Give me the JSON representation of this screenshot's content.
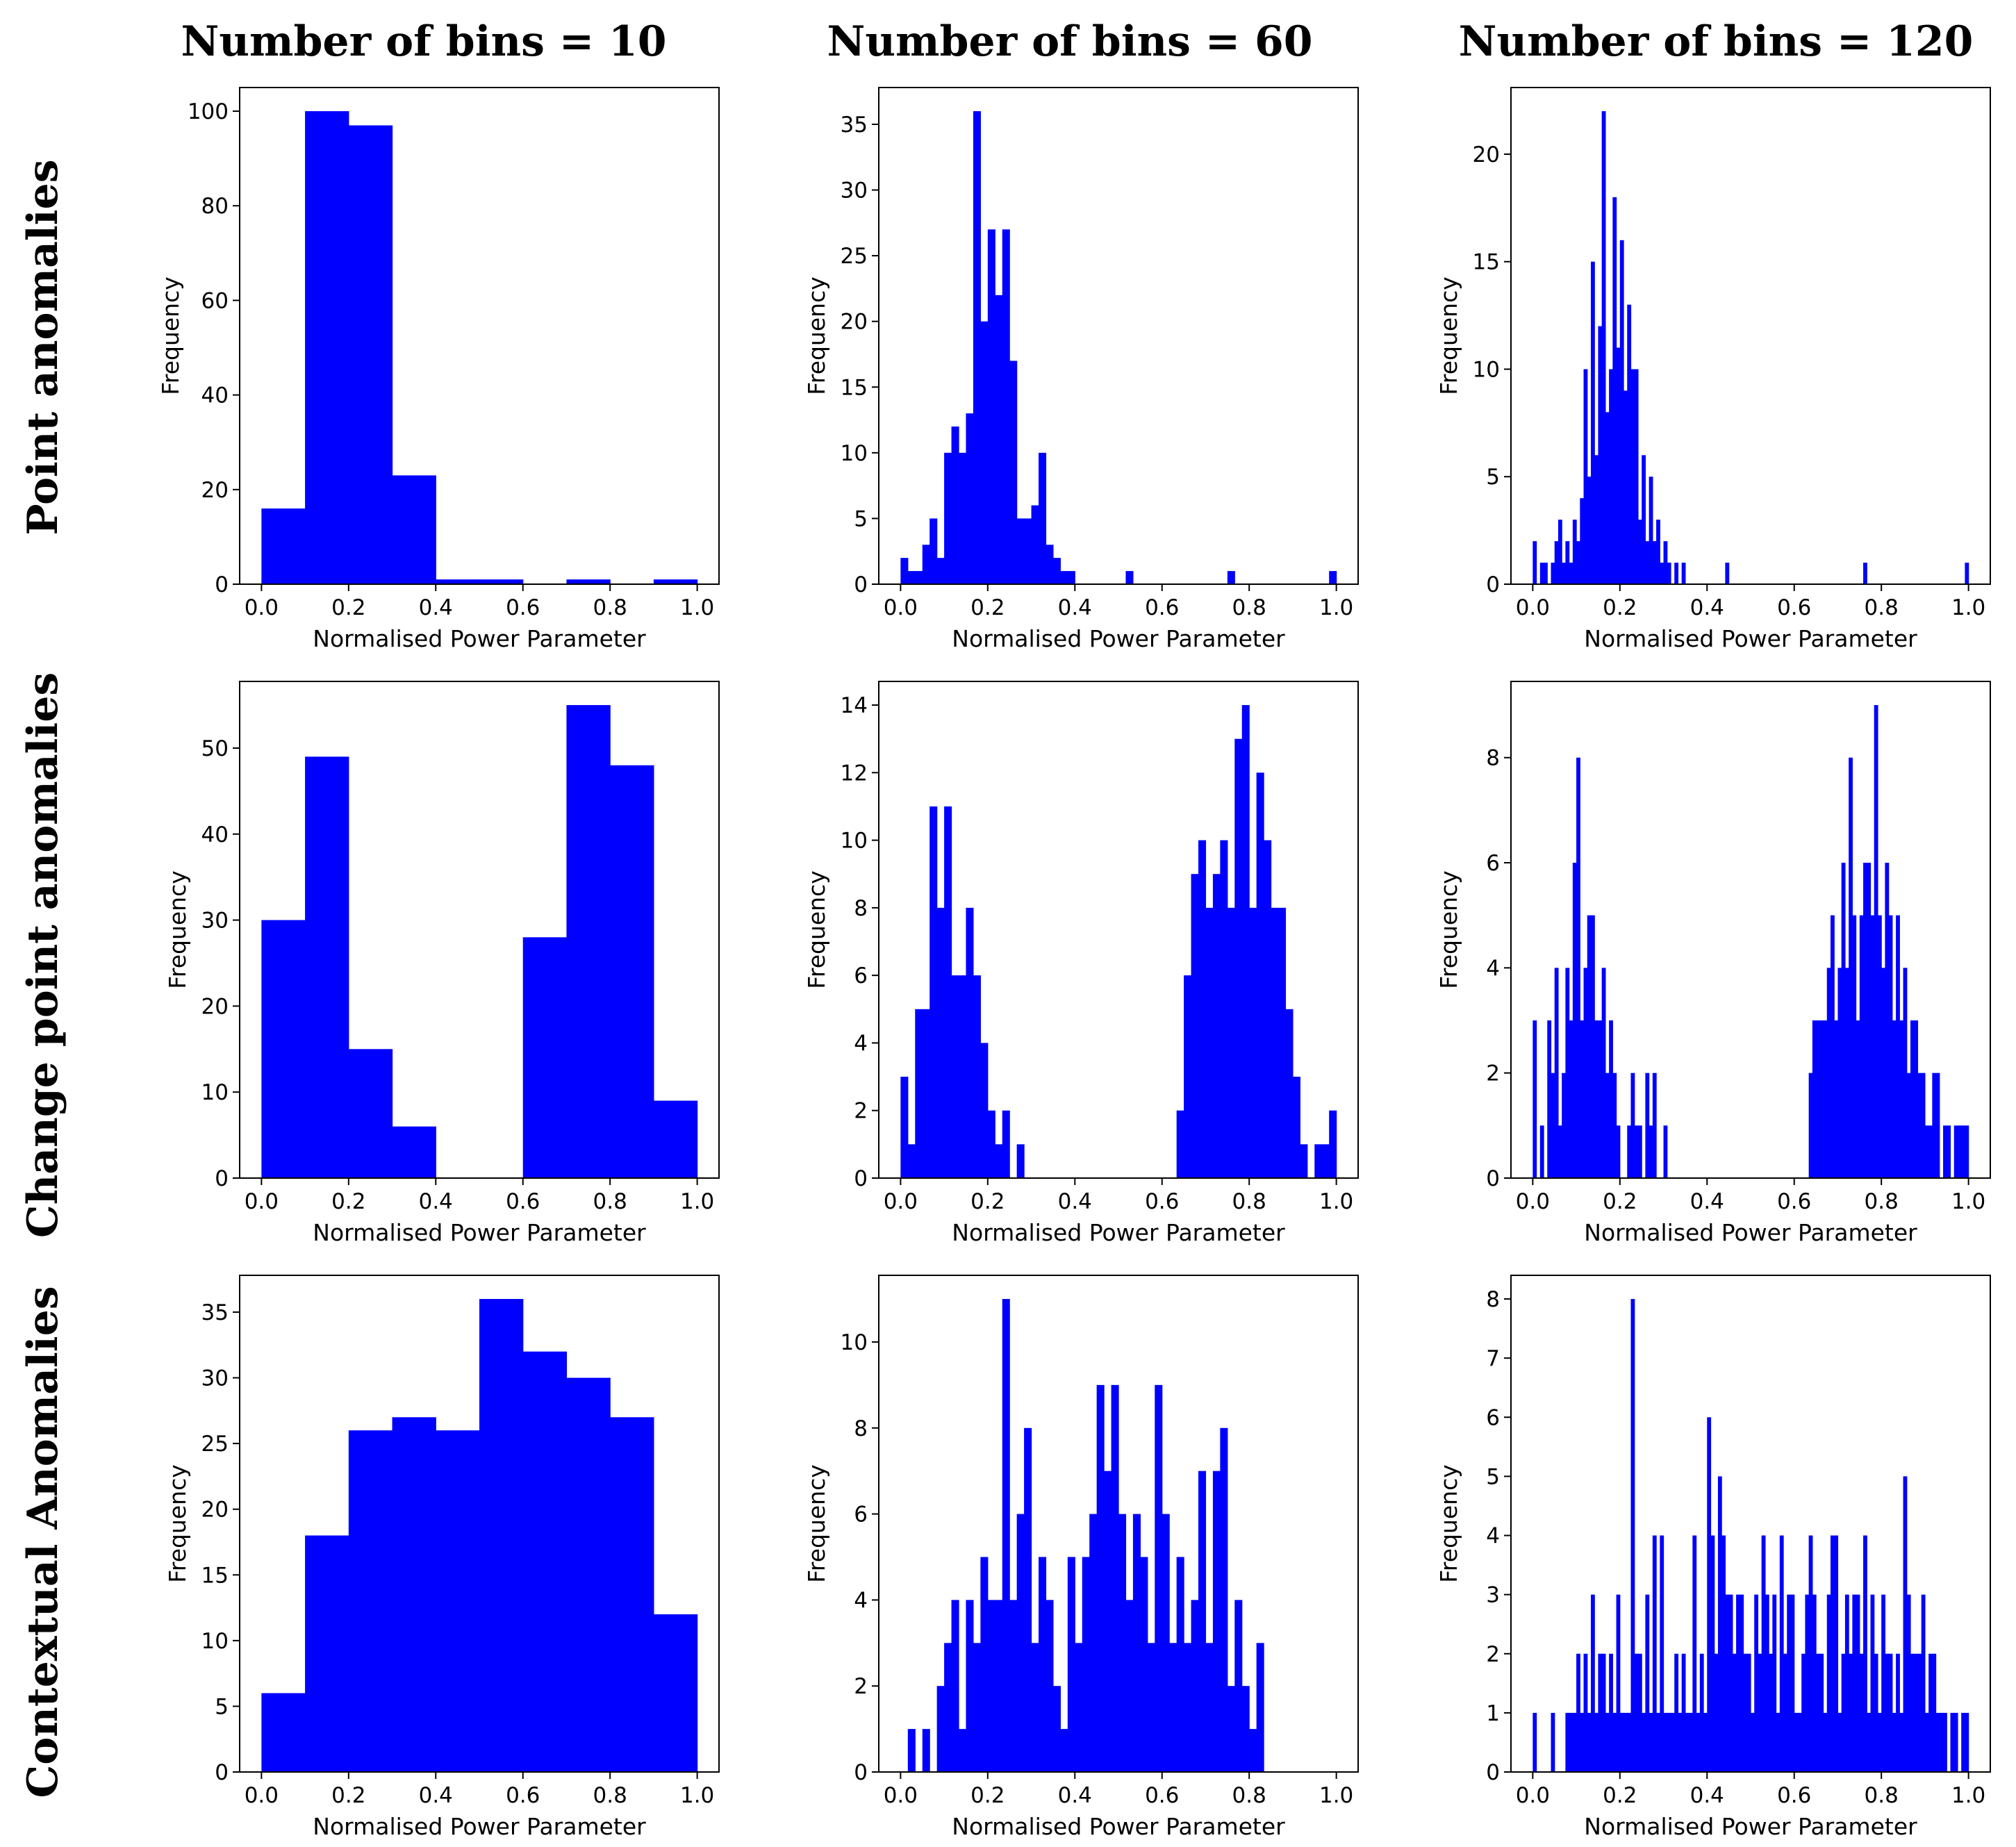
{
  "figure": {
    "column_titles": [
      "Number of bins = 10",
      "Number of bins = 60",
      "Number of bins = 120"
    ],
    "row_titles": [
      "Point anomalies",
      "Change point anomalies",
      "Contextual Anomalies"
    ],
    "bar_color": "#0000ff"
  },
  "chart_data": [
    {
      "type": "bar",
      "title": "",
      "bins": 10,
      "xlabel": "Normalised Power Parameter",
      "ylabel": "Frequency",
      "xlim": [
        -0.05,
        1.05
      ],
      "ylim": [
        0,
        105
      ],
      "xticks": [
        0.0,
        0.2,
        0.4,
        0.6,
        0.8,
        1.0
      ],
      "xtick_labels": [
        "0.0",
        "0.2",
        "0.4",
        "0.6",
        "0.8",
        "1.0"
      ],
      "yticks": [
        0,
        20,
        40,
        60,
        80,
        100
      ],
      "ytick_labels": [
        "0",
        "20",
        "40",
        "60",
        "80",
        "100"
      ],
      "values": [
        16,
        100,
        97,
        23,
        1,
        1,
        0,
        1,
        0,
        1
      ]
    },
    {
      "type": "bar",
      "title": "",
      "bins": 60,
      "xlabel": "Normalised Power Parameter",
      "ylabel": "Frequency",
      "xlim": [
        -0.05,
        1.05
      ],
      "ylim": [
        0,
        37.8
      ],
      "xticks": [
        0.0,
        0.2,
        0.4,
        0.6,
        0.8,
        1.0
      ],
      "xtick_labels": [
        "0.0",
        "0.2",
        "0.4",
        "0.6",
        "0.8",
        "1.0"
      ],
      "yticks": [
        0,
        5,
        10,
        15,
        20,
        25,
        30,
        35
      ],
      "ytick_labels": [
        "0",
        "5",
        "10",
        "15",
        "20",
        "25",
        "30",
        "35"
      ],
      "values": [
        2,
        1,
        1,
        3,
        5,
        2,
        10,
        12,
        10,
        13,
        36,
        20,
        27,
        22,
        27,
        17,
        5,
        5,
        6,
        10,
        3,
        2,
        1,
        1,
        0,
        0,
        0,
        0,
        0,
        0,
        0,
        1,
        0,
        0,
        0,
        0,
        0,
        0,
        0,
        0,
        0,
        0,
        0,
        0,
        0,
        1,
        0,
        0,
        0,
        0,
        0,
        0,
        0,
        0,
        0,
        0,
        0,
        0,
        0,
        1
      ]
    },
    {
      "type": "bar",
      "title": "",
      "bins": 120,
      "xlabel": "Normalised Power Parameter",
      "ylabel": "Frequency",
      "xlim": [
        -0.05,
        1.05
      ],
      "ylim": [
        0,
        23.1
      ],
      "xticks": [
        0.0,
        0.2,
        0.4,
        0.6,
        0.8,
        1.0
      ],
      "xtick_labels": [
        "0.0",
        "0.2",
        "0.4",
        "0.6",
        "0.8",
        "1.0"
      ],
      "yticks": [
        0,
        5,
        10,
        15,
        20
      ],
      "ytick_labels": [
        "0",
        "5",
        "10",
        "15",
        "20"
      ],
      "values": [
        2,
        0,
        1,
        1,
        0,
        1,
        2,
        3,
        1,
        2,
        1,
        3,
        2,
        4,
        10,
        5,
        15,
        6,
        12,
        22,
        8,
        10,
        18,
        11,
        16,
        9,
        13,
        10,
        10,
        3,
        6,
        2,
        5,
        2,
        3,
        1,
        2,
        1,
        0,
        1,
        0,
        1,
        0,
        0,
        0,
        0,
        0,
        0,
        0,
        0,
        0,
        0,
        0,
        1,
        0,
        0,
        0,
        0,
        0,
        0,
        0,
        0,
        0,
        0,
        0,
        0,
        0,
        0,
        0,
        0,
        0,
        0,
        0,
        0,
        0,
        0,
        0,
        0,
        0,
        0,
        0,
        0,
        0,
        0,
        0,
        0,
        0,
        0,
        0,
        0,
        0,
        1,
        0,
        0,
        0,
        0,
        0,
        0,
        0,
        0,
        0,
        0,
        0,
        0,
        0,
        0,
        0,
        0,
        0,
        0,
        0,
        0,
        0,
        0,
        0,
        0,
        0,
        0,
        0,
        1
      ]
    },
    {
      "type": "bar",
      "title": "",
      "bins": 10,
      "xlabel": "Normalised Power Parameter",
      "ylabel": "Frequency",
      "xlim": [
        -0.05,
        1.05
      ],
      "ylim": [
        0,
        57.75
      ],
      "xticks": [
        0.0,
        0.2,
        0.4,
        0.6,
        0.8,
        1.0
      ],
      "xtick_labels": [
        "0.0",
        "0.2",
        "0.4",
        "0.6",
        "0.8",
        "1.0"
      ],
      "yticks": [
        0,
        10,
        20,
        30,
        40,
        50
      ],
      "ytick_labels": [
        "0",
        "10",
        "20",
        "30",
        "40",
        "50"
      ],
      "values": [
        30,
        49,
        15,
        6,
        0,
        0,
        28,
        55,
        48,
        9
      ]
    },
    {
      "type": "bar",
      "title": "",
      "bins": 60,
      "xlabel": "Normalised Power Parameter",
      "ylabel": "Frequency",
      "xlim": [
        -0.05,
        1.05
      ],
      "ylim": [
        0,
        14.7
      ],
      "xticks": [
        0.0,
        0.2,
        0.4,
        0.6,
        0.8,
        1.0
      ],
      "xtick_labels": [
        "0.0",
        "0.2",
        "0.4",
        "0.6",
        "0.8",
        "1.0"
      ],
      "yticks": [
        0,
        2,
        4,
        6,
        8,
        10,
        12,
        14
      ],
      "ytick_labels": [
        "0",
        "2",
        "4",
        "6",
        "8",
        "10",
        "12",
        "14"
      ],
      "values": [
        3,
        1,
        5,
        5,
        11,
        8,
        11,
        6,
        6,
        8,
        6,
        4,
        2,
        1,
        2,
        0,
        1,
        0,
        0,
        0,
        0,
        0,
        0,
        0,
        0,
        0,
        0,
        0,
        0,
        0,
        0,
        0,
        0,
        0,
        0,
        0,
        0,
        0,
        2,
        6,
        9,
        10,
        8,
        9,
        10,
        8,
        13,
        14,
        8,
        12,
        10,
        8,
        8,
        5,
        3,
        1,
        0,
        1,
        1,
        2
      ]
    },
    {
      "type": "bar",
      "title": "",
      "bins": 120,
      "xlabel": "Normalised Power Parameter",
      "ylabel": "Frequency",
      "xlim": [
        -0.05,
        1.05
      ],
      "ylim": [
        0,
        9.45
      ],
      "xticks": [
        0.0,
        0.2,
        0.4,
        0.6,
        0.8,
        1.0
      ],
      "xtick_labels": [
        "0.0",
        "0.2",
        "0.4",
        "0.6",
        "0.8",
        "1.0"
      ],
      "yticks": [
        0,
        2,
        4,
        6,
        8
      ],
      "ytick_labels": [
        "0",
        "2",
        "4",
        "6",
        "8"
      ],
      "values": [
        3,
        0,
        1,
        0,
        3,
        2,
        4,
        1,
        2,
        4,
        3,
        6,
        8,
        3,
        4,
        5,
        5,
        3,
        3,
        4,
        2,
        3,
        2,
        1,
        0,
        0,
        1,
        2,
        1,
        1,
        0,
        2,
        1,
        2,
        0,
        0,
        1,
        0,
        0,
        0,
        0,
        0,
        0,
        0,
        0,
        0,
        0,
        0,
        0,
        0,
        0,
        0,
        0,
        0,
        0,
        0,
        0,
        0,
        0,
        0,
        0,
        0,
        0,
        0,
        0,
        0,
        0,
        0,
        0,
        0,
        0,
        0,
        0,
        0,
        0,
        0,
        2,
        3,
        3,
        3,
        3,
        4,
        5,
        3,
        4,
        6,
        4,
        8,
        5,
        3,
        5,
        6,
        6,
        5,
        9,
        5,
        4,
        6,
        5,
        3,
        5,
        3,
        4,
        2,
        3,
        3,
        2,
        2,
        1,
        1,
        2,
        2,
        0,
        1,
        1,
        0,
        1,
        1,
        1,
        1
      ]
    },
    {
      "type": "bar",
      "title": "",
      "bins": 10,
      "xlabel": "Normalised Power Parameter",
      "ylabel": "Frequency",
      "xlim": [
        -0.05,
        1.05
      ],
      "ylim": [
        0,
        37.8
      ],
      "xticks": [
        0.0,
        0.2,
        0.4,
        0.6,
        0.8,
        1.0
      ],
      "xtick_labels": [
        "0.0",
        "0.2",
        "0.4",
        "0.6",
        "0.8",
        "1.0"
      ],
      "yticks": [
        0,
        5,
        10,
        15,
        20,
        25,
        30,
        35
      ],
      "ytick_labels": [
        "0",
        "5",
        "10",
        "15",
        "20",
        "25",
        "30",
        "35"
      ],
      "values": [
        6,
        18,
        26,
        27,
        26,
        36,
        32,
        30,
        27,
        12
      ]
    },
    {
      "type": "bar",
      "title": "",
      "bins": 60,
      "xlabel": "Normalised Power Parameter",
      "ylabel": "Frequency",
      "xlim": [
        -0.05,
        1.05
      ],
      "ylim": [
        0,
        11.55
      ],
      "xticks": [
        0.0,
        0.2,
        0.4,
        0.6,
        0.8,
        1.0
      ],
      "xtick_labels": [
        "0.0",
        "0.2",
        "0.4",
        "0.6",
        "0.8",
        "1.0"
      ],
      "yticks": [
        0,
        2,
        4,
        6,
        8,
        10
      ],
      "ytick_labels": [
        "0",
        "2",
        "4",
        "6",
        "8",
        "10"
      ],
      "values": [
        0,
        1,
        0,
        1,
        0,
        2,
        3,
        4,
        1,
        4,
        3,
        5,
        4,
        4,
        11,
        4,
        6,
        8,
        3,
        5,
        4,
        2,
        1,
        5,
        3,
        5,
        6,
        9,
        7,
        9,
        6,
        4,
        6,
        5,
        3,
        9,
        6,
        3,
        5,
        3,
        4,
        7,
        3,
        7,
        8,
        2,
        4,
        2,
        1,
        3,
        0,
        0,
        0,
        0,
        0,
        0,
        0,
        0,
        0,
        0
      ]
    },
    {
      "type": "bar",
      "title": "",
      "bins": 120,
      "xlabel": "Normalised Power Parameter",
      "ylabel": "Frequency",
      "xlim": [
        -0.05,
        1.05
      ],
      "ylim": [
        0,
        8.4
      ],
      "xticks": [
        0.0,
        0.2,
        0.4,
        0.6,
        0.8,
        1.0
      ],
      "xtick_labels": [
        "0.0",
        "0.2",
        "0.4",
        "0.6",
        "0.8",
        "1.0"
      ],
      "yticks": [
        0,
        1,
        2,
        3,
        4,
        5,
        6,
        7,
        8
      ],
      "ytick_labels": [
        "0",
        "1",
        "2",
        "3",
        "4",
        "5",
        "6",
        "7",
        "8"
      ],
      "values": [
        1,
        0,
        0,
        0,
        0,
        1,
        0,
        0,
        0,
        1,
        1,
        1,
        2,
        1,
        2,
        1,
        3,
        1,
        2,
        2,
        1,
        2,
        1,
        3,
        1,
        1,
        1,
        8,
        2,
        2,
        1,
        3,
        1,
        4,
        1,
        4,
        1,
        1,
        1,
        2,
        1,
        2,
        1,
        1,
        4,
        1,
        2,
        1,
        6,
        4,
        2,
        5,
        4,
        3,
        3,
        2,
        3,
        3,
        2,
        2,
        1,
        3,
        2,
        4,
        3,
        2,
        3,
        1,
        4,
        2,
        3,
        3,
        1,
        1,
        2,
        3,
        4,
        3,
        2,
        2,
        1,
        3,
        4,
        4,
        1,
        2,
        3,
        2,
        3,
        3,
        2,
        4,
        1,
        3,
        2,
        1,
        3,
        2,
        2,
        1,
        2,
        1,
        5,
        3,
        2,
        2,
        2,
        3,
        1,
        2,
        2,
        1,
        1,
        1,
        0,
        1,
        1,
        0,
        1,
        1
      ]
    }
  ]
}
